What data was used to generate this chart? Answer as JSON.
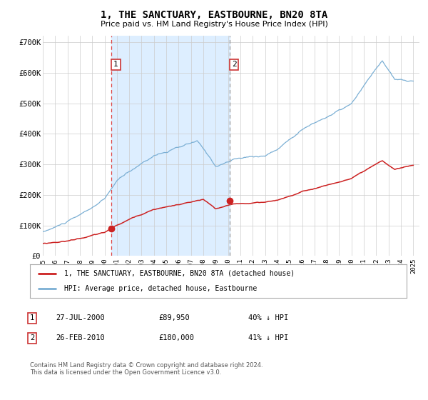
{
  "title": "1, THE SANCTUARY, EASTBOURNE, BN20 8TA",
  "subtitle": "Price paid vs. HM Land Registry's House Price Index (HPI)",
  "hpi_label": "HPI: Average price, detached house, Eastbourne",
  "property_label": "1, THE SANCTUARY, EASTBOURNE, BN20 8TA (detached house)",
  "footnote": "Contains HM Land Registry data © Crown copyright and database right 2024.\nThis data is licensed under the Open Government Licence v3.0.",
  "sale1_date": "27-JUL-2000",
  "sale1_price": "£89,950",
  "sale1_hpi": "40% ↓ HPI",
  "sale2_date": "26-FEB-2010",
  "sale2_price": "£180,000",
  "sale2_hpi": "41% ↓ HPI",
  "hpi_color": "#7bafd4",
  "property_color": "#cc2222",
  "vline1_color": "#dd4444",
  "vline2_color": "#999999",
  "shade_color": "#ddeeff",
  "background_color": "#ffffff",
  "grid_color": "#cccccc",
  "ylim": [
    0,
    720000
  ],
  "yticks": [
    0,
    100000,
    200000,
    300000,
    400000,
    500000,
    600000,
    700000
  ],
  "ytick_labels": [
    "£0",
    "£100K",
    "£200K",
    "£300K",
    "£400K",
    "£500K",
    "£600K",
    "£700K"
  ],
  "sale1_year": 2000.57,
  "sale2_year": 2010.15,
  "sale1_value": 89950,
  "sale2_value": 180000,
  "xlim_left": 1995.0,
  "xlim_right": 2025.5
}
